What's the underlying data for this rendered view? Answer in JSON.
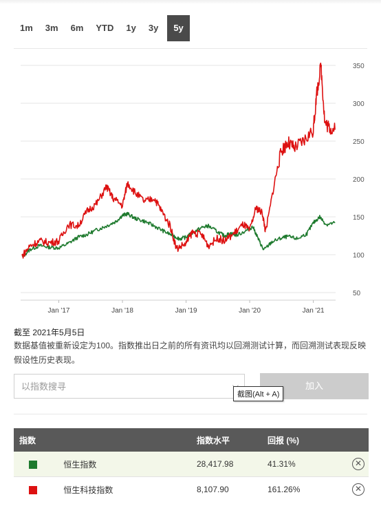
{
  "range_tabs": [
    "1m",
    "3m",
    "6m",
    "YTD",
    "1y",
    "3y",
    "5y"
  ],
  "active_range": "5y",
  "chart_data": {
    "type": "line",
    "x_tick_labels": [
      "Jan '17",
      "Jan '18",
      "Jan '19",
      "Jan '20",
      "Jan '21"
    ],
    "y_ticks": [
      50,
      100,
      150,
      200,
      250,
      300,
      350
    ],
    "ylim": [
      40,
      360
    ],
    "xlim": [
      2016.4,
      2021.35
    ],
    "grid": true,
    "y_axis_side": "right",
    "series": [
      {
        "color": "#1e7a2e",
        "x": [
          2016.42,
          2016.55,
          2016.7,
          2016.85,
          2017.0,
          2017.15,
          2017.3,
          2017.45,
          2017.6,
          2017.75,
          2017.9,
          2018.0,
          2018.08,
          2018.2,
          2018.35,
          2018.5,
          2018.65,
          2018.8,
          2018.9,
          2019.0,
          2019.1,
          2019.25,
          2019.35,
          2019.5,
          2019.6,
          2019.7,
          2019.8,
          2019.95,
          2020.05,
          2020.15,
          2020.22,
          2020.35,
          2020.5,
          2020.6,
          2020.75,
          2020.9,
          2021.0,
          2021.1,
          2021.2,
          2021.34
        ],
        "y": [
          97,
          107,
          112,
          110,
          109,
          115,
          123,
          127,
          133,
          138,
          144,
          152,
          154,
          148,
          144,
          138,
          131,
          125,
          121,
          123,
          129,
          136,
          138,
          130,
          125,
          128,
          126,
          132,
          137,
          118,
          106,
          117,
          122,
          124,
          121,
          128,
          142,
          150,
          140,
          142
        ]
      },
      {
        "color": "#dd1111",
        "x": [
          2016.42,
          2016.55,
          2016.7,
          2016.85,
          2017.0,
          2017.15,
          2017.3,
          2017.45,
          2017.6,
          2017.75,
          2017.85,
          2018.0,
          2018.08,
          2018.2,
          2018.35,
          2018.5,
          2018.6,
          2018.75,
          2018.85,
          2019.0,
          2019.1,
          2019.25,
          2019.35,
          2019.5,
          2019.6,
          2019.75,
          2019.9,
          2020.0,
          2020.1,
          2020.2,
          2020.25,
          2020.4,
          2020.5,
          2020.6,
          2020.7,
          2020.85,
          2021.0,
          2021.05,
          2021.12,
          2021.18,
          2021.25,
          2021.34
        ],
        "y": [
          98,
          112,
          118,
          116,
          118,
          140,
          138,
          158,
          168,
          190,
          175,
          165,
          195,
          182,
          170,
          175,
          160,
          138,
          108,
          115,
          130,
          126,
          112,
          122,
          118,
          128,
          140,
          132,
          162,
          155,
          130,
          200,
          238,
          248,
          240,
          250,
          265,
          310,
          350,
          275,
          268,
          265
        ]
      }
    ]
  },
  "as_of": "截至 2021年5月5日",
  "note": "数据基值被重新设定为100。指数推出日之前的所有资讯均以回溯测试计算，而回溯测试表现反映假设性历史表现。",
  "search": {
    "placeholder": "以指数搜寻"
  },
  "add_label": "加入",
  "tooltip": "截图(Alt + A)",
  "table": {
    "headers": [
      "指数",
      "指数水平",
      "回报 (%)"
    ],
    "rows": [
      {
        "color": "#1e7a2e",
        "name": "恒生指数",
        "level": "28,417.98",
        "return": "41.31%"
      },
      {
        "color": "#dd1111",
        "name": "恒生科技指数",
        "level": "8,107.90",
        "return": "161.26%"
      }
    ],
    "remove_icon": "circle-x-icon"
  }
}
